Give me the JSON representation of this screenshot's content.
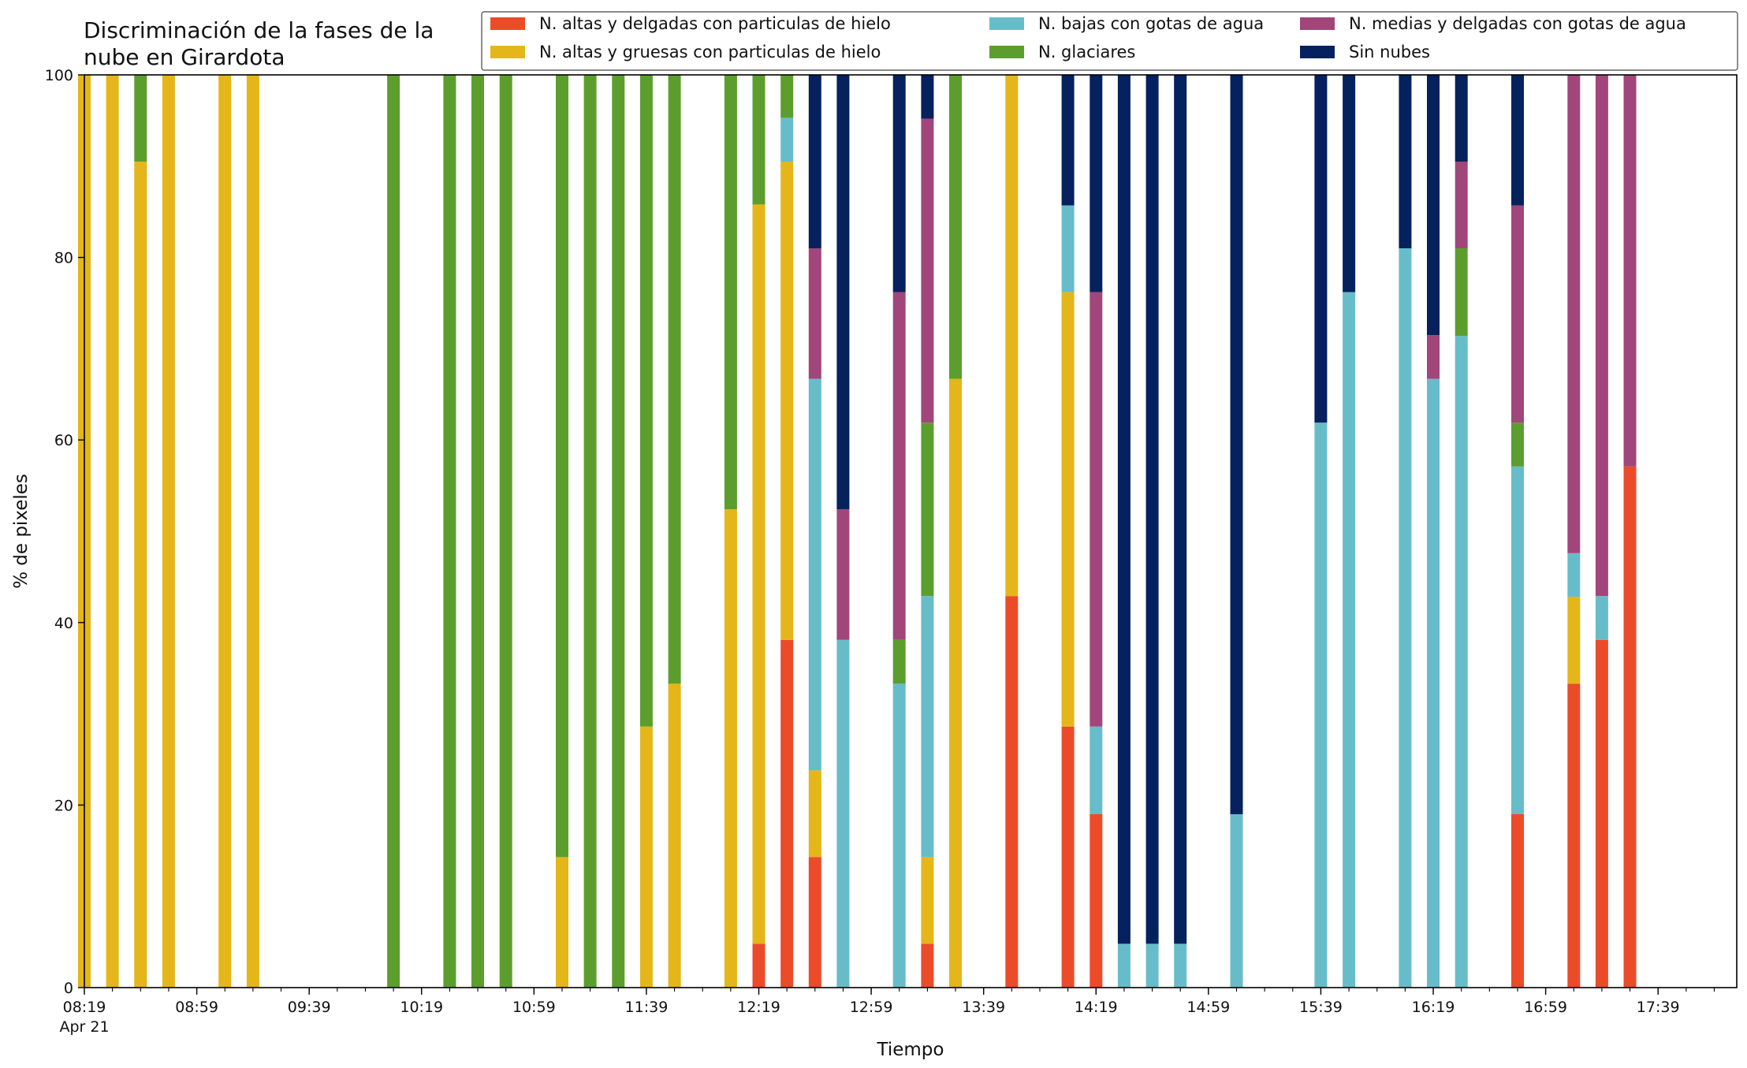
{
  "chart_data": {
    "type": "bar",
    "title": "Discriminación de la fases de la nube en Girardota",
    "xlabel": "Tiempo",
    "ylabel": "% de pixeles",
    "ylim": [
      0,
      100
    ],
    "yticks": [
      0,
      20,
      40,
      60,
      80,
      100
    ],
    "xlim_minutes_after_0819": [
      0,
      588
    ],
    "xticks": [
      {
        "label": "08:19",
        "sublabel": "Apr 21",
        "minute": 0
      },
      {
        "label": "08:59",
        "minute": 40
      },
      {
        "label": "09:39",
        "minute": 80
      },
      {
        "label": "10:19",
        "minute": 120
      },
      {
        "label": "10:59",
        "minute": 160
      },
      {
        "label": "11:39",
        "minute": 200
      },
      {
        "label": "12:19",
        "minute": 240
      },
      {
        "label": "12:59",
        "minute": 280
      },
      {
        "label": "13:39",
        "minute": 320
      },
      {
        "label": "14:19",
        "minute": 360
      },
      {
        "label": "14:59",
        "minute": 400
      },
      {
        "label": "15:39",
        "minute": 440
      },
      {
        "label": "16:19",
        "minute": 480
      },
      {
        "label": "16:59",
        "minute": 520
      },
      {
        "label": "17:39",
        "minute": 560
      }
    ],
    "grid": false,
    "legend_position": "top-right",
    "series": [
      {
        "name": "N. altas y delgadas con particulas de hielo",
        "color": "#ec4b2a"
      },
      {
        "name": "N. altas y gruesas con particulas de hielo",
        "color": "#e4b619"
      },
      {
        "name": "N. bajas con gotas de agua",
        "color": "#66bdc9"
      },
      {
        "name": "N. glaciares",
        "color": "#5c9e2d"
      },
      {
        "name": "N. medias y delgadas con gotas de agua",
        "color": "#a1467b"
      },
      {
        "name": "Sin nubes",
        "color": "#05215e"
      }
    ],
    "bars": [
      {
        "time": "08:19",
        "values": [
          0,
          100,
          0,
          0,
          0,
          0
        ]
      },
      {
        "time": "08:29",
        "values": [
          0,
          100,
          0,
          0,
          0,
          0
        ]
      },
      {
        "time": "08:39",
        "values": [
          0,
          90.5,
          0,
          9.5,
          0,
          0
        ]
      },
      {
        "time": "08:49",
        "values": [
          0,
          100,
          0,
          0,
          0,
          0
        ]
      },
      {
        "time": "09:09",
        "values": [
          0,
          100,
          0,
          0,
          0,
          0
        ]
      },
      {
        "time": "09:19",
        "values": [
          0,
          100,
          0,
          0,
          0,
          0
        ]
      },
      {
        "time": "10:09",
        "values": [
          0,
          0,
          0,
          100,
          0,
          0
        ]
      },
      {
        "time": "10:29",
        "values": [
          0,
          0,
          0,
          100,
          0,
          0
        ]
      },
      {
        "time": "10:39",
        "values": [
          0,
          0,
          0,
          100,
          0,
          0
        ]
      },
      {
        "time": "10:49",
        "values": [
          0,
          0,
          0,
          100,
          0,
          0
        ]
      },
      {
        "time": "11:09",
        "values": [
          0,
          14.3,
          0,
          85.7,
          0,
          0
        ]
      },
      {
        "time": "11:19",
        "values": [
          0,
          0,
          0,
          100,
          0,
          0
        ]
      },
      {
        "time": "11:29",
        "values": [
          0,
          0,
          0,
          100,
          0,
          0
        ]
      },
      {
        "time": "11:39",
        "values": [
          0,
          28.6,
          0,
          71.4,
          0,
          0
        ]
      },
      {
        "time": "11:49",
        "values": [
          0,
          33.3,
          0,
          66.7,
          0,
          0
        ]
      },
      {
        "time": "12:09",
        "values": [
          0,
          52.4,
          0,
          47.6,
          0,
          0
        ]
      },
      {
        "time": "12:19",
        "values": [
          4.8,
          81.0,
          0,
          14.2,
          0,
          0
        ]
      },
      {
        "time": "12:29",
        "values": [
          38.1,
          52.4,
          4.8,
          4.7,
          0,
          0
        ]
      },
      {
        "time": "12:39",
        "values": [
          14.3,
          9.5,
          42.9,
          0,
          14.3,
          19.0
        ]
      },
      {
        "time": "12:49",
        "values": [
          0,
          0,
          38.1,
          0,
          14.3,
          47.6
        ]
      },
      {
        "time": "13:09",
        "values": [
          0,
          0,
          33.3,
          4.8,
          38.1,
          23.8
        ]
      },
      {
        "time": "13:19",
        "values": [
          4.8,
          9.5,
          28.6,
          19.0,
          33.3,
          4.8
        ]
      },
      {
        "time": "13:29",
        "values": [
          0,
          66.7,
          0,
          33.3,
          0,
          0
        ]
      },
      {
        "time": "13:49",
        "values": [
          42.9,
          57.1,
          0,
          0,
          0,
          0
        ]
      },
      {
        "time": "14:09",
        "values": [
          28.6,
          47.6,
          9.5,
          0,
          0,
          14.3
        ]
      },
      {
        "time": "14:19",
        "values": [
          19.0,
          0,
          9.6,
          0,
          47.6,
          23.8
        ]
      },
      {
        "time": "14:29",
        "values": [
          0,
          0,
          4.8,
          0,
          0,
          95.2
        ]
      },
      {
        "time": "14:39",
        "values": [
          0,
          0,
          4.8,
          0,
          0,
          95.2
        ]
      },
      {
        "time": "14:49",
        "values": [
          0,
          0,
          4.8,
          0,
          0,
          95.2
        ]
      },
      {
        "time": "15:09",
        "values": [
          0,
          0,
          19.0,
          0,
          0,
          81.0
        ]
      },
      {
        "time": "15:39",
        "values": [
          0,
          0,
          61.9,
          0,
          0,
          38.1
        ]
      },
      {
        "time": "15:49",
        "values": [
          0,
          0,
          76.2,
          0,
          0,
          23.8
        ]
      },
      {
        "time": "16:09",
        "values": [
          0,
          0,
          81.0,
          0,
          0,
          19.0
        ]
      },
      {
        "time": "16:19",
        "values": [
          0,
          0,
          66.7,
          0,
          4.8,
          28.5
        ]
      },
      {
        "time": "16:29",
        "values": [
          0,
          0,
          71.4,
          9.6,
          9.5,
          9.5
        ]
      },
      {
        "time": "16:49",
        "values": [
          19.0,
          0,
          38.1,
          4.8,
          23.8,
          14.3
        ]
      },
      {
        "time": "17:09",
        "values": [
          33.3,
          9.5,
          4.8,
          0,
          52.4,
          0
        ]
      },
      {
        "time": "17:19",
        "values": [
          38.1,
          0,
          4.8,
          0,
          57.1,
          0
        ]
      },
      {
        "time": "17:29",
        "values": [
          57.1,
          0,
          0,
          0,
          42.9,
          0
        ]
      }
    ]
  }
}
